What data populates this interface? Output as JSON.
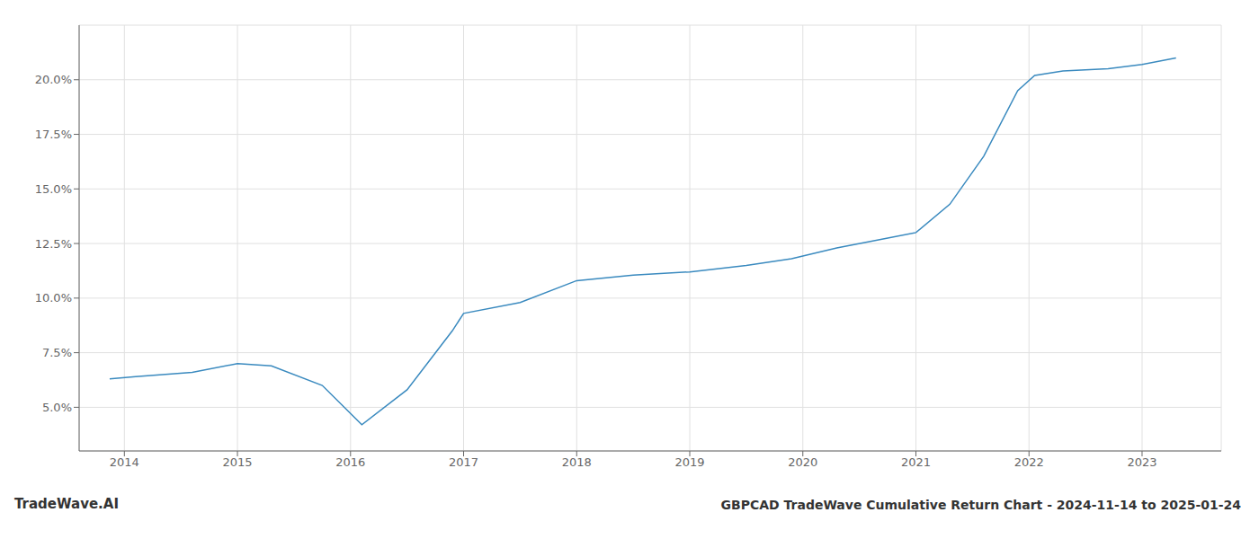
{
  "chart_data": {
    "type": "line",
    "title": "GBPCAD TradeWave Cumulative Return Chart - 2024-11-14 to 2025-01-24",
    "annotations": [
      "TradeWave.AI"
    ],
    "x": [
      2013.87,
      2014.1,
      2014.6,
      2015.0,
      2015.3,
      2015.75,
      2016.1,
      2016.5,
      2016.9,
      2017.0,
      2017.5,
      2018.0,
      2018.5,
      2019.0,
      2019.5,
      2019.9,
      2020.3,
      2020.7,
      2021.0,
      2021.3,
      2021.6,
      2021.9,
      2022.05,
      2022.3,
      2022.7,
      2023.0,
      2023.3
    ],
    "values": [
      6.3,
      6.4,
      6.6,
      7.0,
      6.9,
      6.0,
      4.2,
      5.8,
      8.5,
      9.3,
      9.8,
      10.8,
      11.05,
      11.2,
      11.5,
      11.8,
      12.3,
      12.7,
      13.0,
      14.3,
      16.5,
      19.5,
      20.2,
      20.4,
      20.5,
      20.7,
      21.0
    ],
    "color": "#3a8abf",
    "xlim": [
      2013.6,
      2023.7
    ],
    "xticks": [
      2014,
      2015,
      2016,
      2017,
      2018,
      2019,
      2020,
      2021,
      2022,
      2023
    ],
    "ylim": [
      3.0,
      22.5
    ],
    "yticks": [
      {
        "value": 5.0,
        "label": "5.0%"
      },
      {
        "value": 7.5,
        "label": "7.5%"
      },
      {
        "value": 10.0,
        "label": "10.0%"
      },
      {
        "value": 12.5,
        "label": "12.5%"
      },
      {
        "value": 15.0,
        "label": "15.0%"
      },
      {
        "value": 17.5,
        "label": "17.5%"
      },
      {
        "value": 20.0,
        "label": "20.0%"
      }
    ],
    "grid": true
  }
}
